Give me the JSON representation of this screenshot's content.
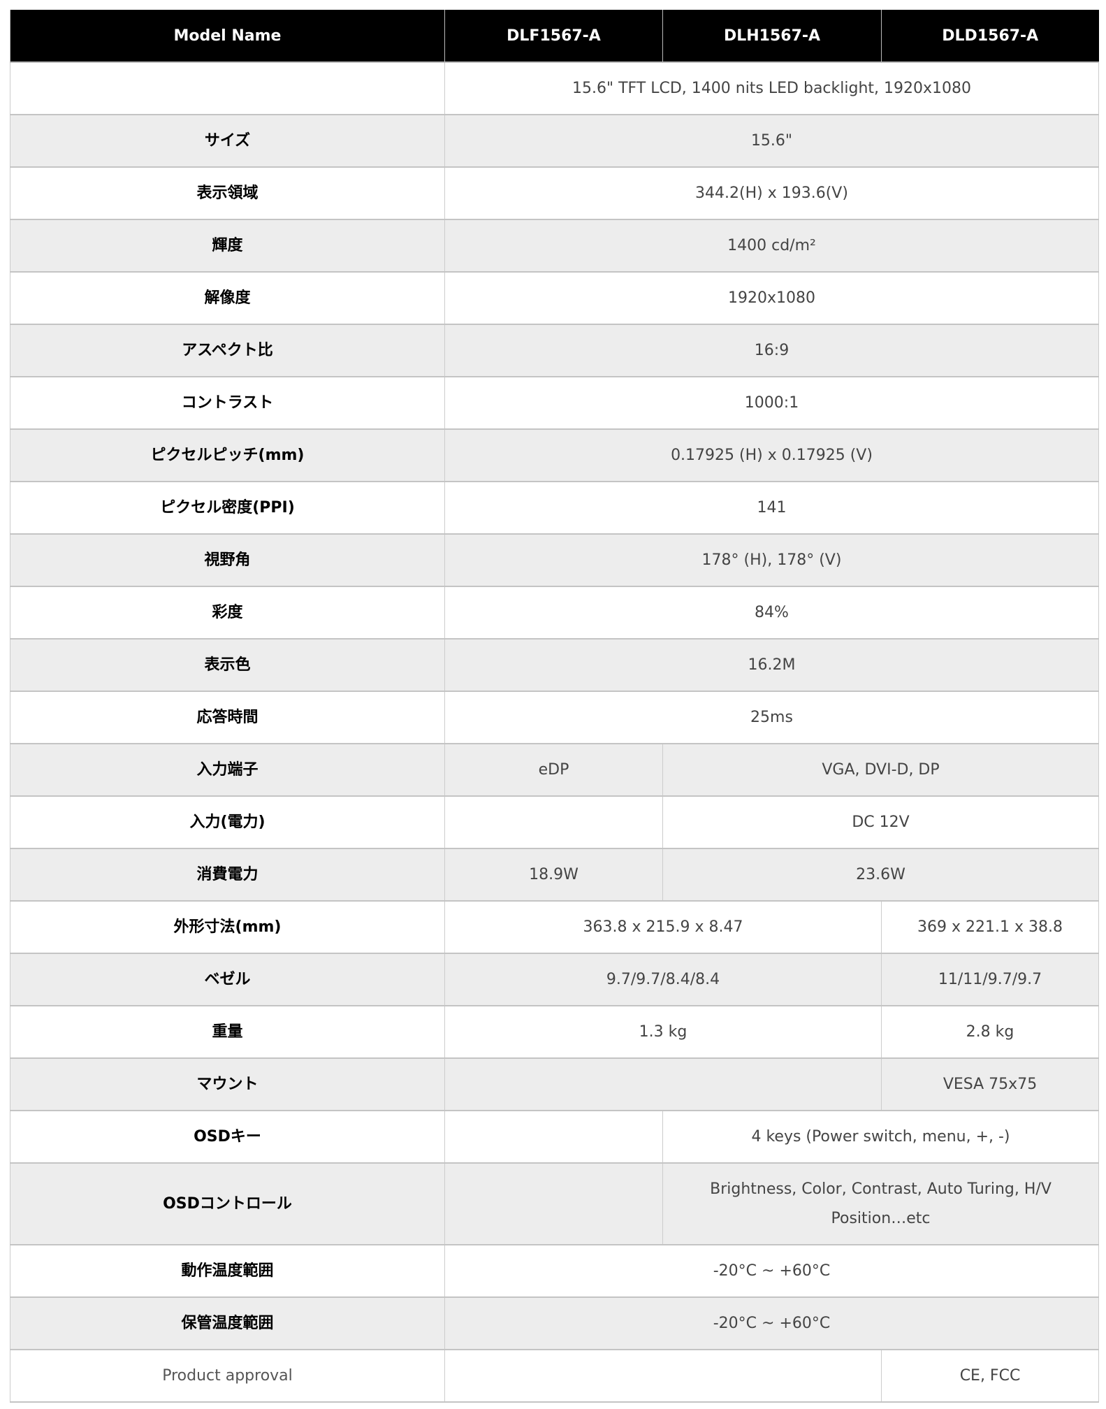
{
  "header": [
    "Model Name",
    "DLF1567-A",
    "DLH1567-A",
    "DLD1567-A"
  ],
  "rows": [
    {
      "cells": [
        {
          "text": "",
          "span": 1,
          "label": true
        },
        {
          "text": "15.6\" TFT LCD, 1400 nits LED backlight, 1920x1080",
          "span": 3
        }
      ]
    },
    {
      "cells": [
        {
          "text": "サイズ",
          "span": 1,
          "label": true
        },
        {
          "text": "15.6\"",
          "span": 3
        }
      ]
    },
    {
      "cells": [
        {
          "text": "表示領域",
          "span": 1,
          "label": true
        },
        {
          "text": "344.2(H) x 193.6(V)",
          "span": 3
        }
      ]
    },
    {
      "cells": [
        {
          "text": "輝度",
          "span": 1,
          "label": true
        },
        {
          "text": "1400 cd/m²",
          "span": 3
        }
      ]
    },
    {
      "cells": [
        {
          "text": "解像度",
          "span": 1,
          "label": true
        },
        {
          "text": "1920x1080",
          "span": 3
        }
      ]
    },
    {
      "cells": [
        {
          "text": "アスペクト比",
          "span": 1,
          "label": true
        },
        {
          "text": "16:9",
          "span": 3
        }
      ]
    },
    {
      "cells": [
        {
          "text": "コントラスト",
          "span": 1,
          "label": true
        },
        {
          "text": "1000:1",
          "span": 3
        }
      ]
    },
    {
      "cells": [
        {
          "text": "ピクセルピッチ(mm)",
          "span": 1,
          "label": true
        },
        {
          "text": "0.17925 (H) x 0.17925 (V)",
          "span": 3
        }
      ]
    },
    {
      "cells": [
        {
          "text": "ピクセル密度(PPI)",
          "span": 1,
          "label": true
        },
        {
          "text": "141",
          "span": 3
        }
      ]
    },
    {
      "cells": [
        {
          "text": "視野角",
          "span": 1,
          "label": true
        },
        {
          "text": "178° (H), 178° (V)",
          "span": 3
        }
      ]
    },
    {
      "cells": [
        {
          "text": "彩度",
          "span": 1,
          "label": true
        },
        {
          "text": "84%",
          "span": 3
        }
      ]
    },
    {
      "cells": [
        {
          "text": "表示色",
          "span": 1,
          "label": true
        },
        {
          "text": "16.2M",
          "span": 3
        }
      ]
    },
    {
      "cells": [
        {
          "text": "応答時間",
          "span": 1,
          "label": true
        },
        {
          "text": "25ms",
          "span": 3
        }
      ]
    },
    {
      "cells": [
        {
          "text": "入力端子",
          "span": 1,
          "label": true
        },
        {
          "text": "eDP",
          "span": 1
        },
        {
          "text": "VGA, DVI-D, DP",
          "span": 2
        }
      ]
    },
    {
      "cells": [
        {
          "text": "入力(電力)",
          "span": 1,
          "label": true
        },
        {
          "text": "",
          "span": 1
        },
        {
          "text": "DC 12V",
          "span": 2
        }
      ]
    },
    {
      "cells": [
        {
          "text": "消費電力",
          "span": 1,
          "label": true
        },
        {
          "text": "18.9W",
          "span": 1
        },
        {
          "text": "23.6W",
          "span": 2
        }
      ]
    },
    {
      "cells": [
        {
          "text": "外形寸法(mm)",
          "span": 1,
          "label": true
        },
        {
          "text": "363.8 x 215.9 x 8.47",
          "span": 2
        },
        {
          "text": "369 x 221.1 x 38.8",
          "span": 1
        }
      ]
    },
    {
      "cells": [
        {
          "text": "ベゼル",
          "span": 1,
          "label": true
        },
        {
          "text": "9.7/9.7/8.4/8.4",
          "span": 2
        },
        {
          "text": "11/11/9.7/9.7",
          "span": 1
        }
      ]
    },
    {
      "cells": [
        {
          "text": "重量",
          "span": 1,
          "label": true
        },
        {
          "text": "1.3 kg",
          "span": 2
        },
        {
          "text": "2.8 kg",
          "span": 1
        }
      ]
    },
    {
      "cells": [
        {
          "text": "マウント",
          "span": 1,
          "label": true
        },
        {
          "text": "",
          "span": 2
        },
        {
          "text": "VESA 75x75",
          "span": 1
        }
      ]
    },
    {
      "cells": [
        {
          "text": "OSDキー",
          "span": 1,
          "label": true
        },
        {
          "text": "",
          "span": 1
        },
        {
          "text": "4 keys (Power switch, menu, +, -)",
          "span": 2
        }
      ]
    },
    {
      "tall": true,
      "cells": [
        {
          "text": "OSDコントロール",
          "span": 1,
          "label": true
        },
        {
          "text": "",
          "span": 1
        },
        {
          "text": "Brightness, Color, Contrast, Auto Turing, H/V Position…etc",
          "span": 2
        }
      ]
    },
    {
      "cells": [
        {
          "text": "動作温度範囲",
          "span": 1,
          "label": true
        },
        {
          "text": "-20°C ~ +60°C",
          "span": 3
        }
      ]
    },
    {
      "cells": [
        {
          "text": "保管温度範囲",
          "span": 1,
          "label": true
        },
        {
          "text": "-20°C ~ +60°C",
          "span": 3
        }
      ]
    },
    {
      "cells": [
        {
          "text": "Product approval",
          "span": 1,
          "label": true,
          "plain": true
        },
        {
          "text": "",
          "span": 2
        },
        {
          "text": "CE, FCC",
          "span": 1
        }
      ]
    }
  ]
}
